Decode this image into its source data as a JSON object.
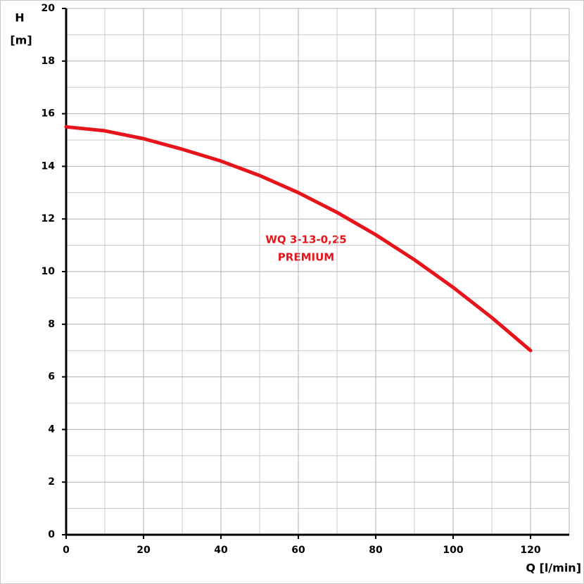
{
  "chart_data": {
    "type": "line",
    "y_label_lines": [
      "H",
      "[m]"
    ],
    "x_label": "Q [l/min]",
    "annotation_lines": [
      "WQ 3-13-0,25",
      "PREMIUM"
    ],
    "x": [
      0,
      10,
      20,
      30,
      40,
      50,
      60,
      70,
      80,
      90,
      100,
      110,
      120
    ],
    "series": [
      {
        "color": "#e8141c",
        "values": [
          15.5,
          15.35,
          15.05,
          14.65,
          14.2,
          13.65,
          13.0,
          12.25,
          11.4,
          10.45,
          9.4,
          8.25,
          7.0
        ]
      }
    ],
    "xlim": [
      0,
      130
    ],
    "xticks": [
      0,
      20,
      40,
      60,
      80,
      100,
      120
    ],
    "ylim": [
      0,
      20
    ],
    "yticks": [
      0,
      2,
      4,
      6,
      8,
      10,
      12,
      14,
      16,
      18,
      20
    ],
    "grid": true
  }
}
